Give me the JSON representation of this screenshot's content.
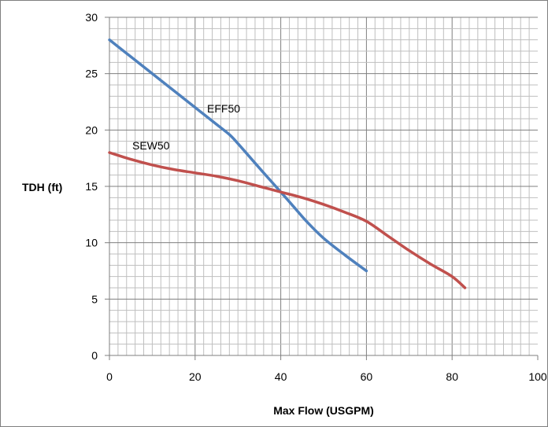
{
  "chart_data": {
    "type": "line",
    "xlabel": "Max Flow (USGPM)",
    "ylabel": "TDH (ft)",
    "xlim": [
      0,
      100
    ],
    "ylim": [
      0,
      30
    ],
    "x_ticks": [
      "0",
      "20",
      "40",
      "60",
      "80",
      "100"
    ],
    "y_ticks": [
      "0",
      "5",
      "10",
      "15",
      "20",
      "25",
      "30"
    ],
    "grid": true,
    "series": [
      {
        "name": "EFF50",
        "color": "#4f81bd",
        "x": [
          0,
          5,
          10,
          15,
          20,
          25,
          28,
          30,
          33,
          36,
          40,
          43,
          46,
          50,
          55,
          60
        ],
        "y": [
          28,
          26.5,
          25,
          23.5,
          22,
          20.5,
          19.6,
          18.8,
          17.5,
          16.2,
          14.5,
          13.2,
          11.9,
          10.4,
          8.9,
          7.5
        ]
      },
      {
        "name": "SEW50",
        "color": "#c0504d",
        "x": [
          0,
          5,
          10,
          15,
          20,
          25,
          30,
          35,
          40,
          45,
          50,
          55,
          60,
          65,
          70,
          75,
          80,
          83
        ],
        "y": [
          18,
          17.4,
          16.9,
          16.5,
          16.2,
          15.9,
          15.5,
          15,
          14.5,
          14,
          13.4,
          12.7,
          11.9,
          10.6,
          9.3,
          8.1,
          7,
          6
        ]
      }
    ]
  }
}
